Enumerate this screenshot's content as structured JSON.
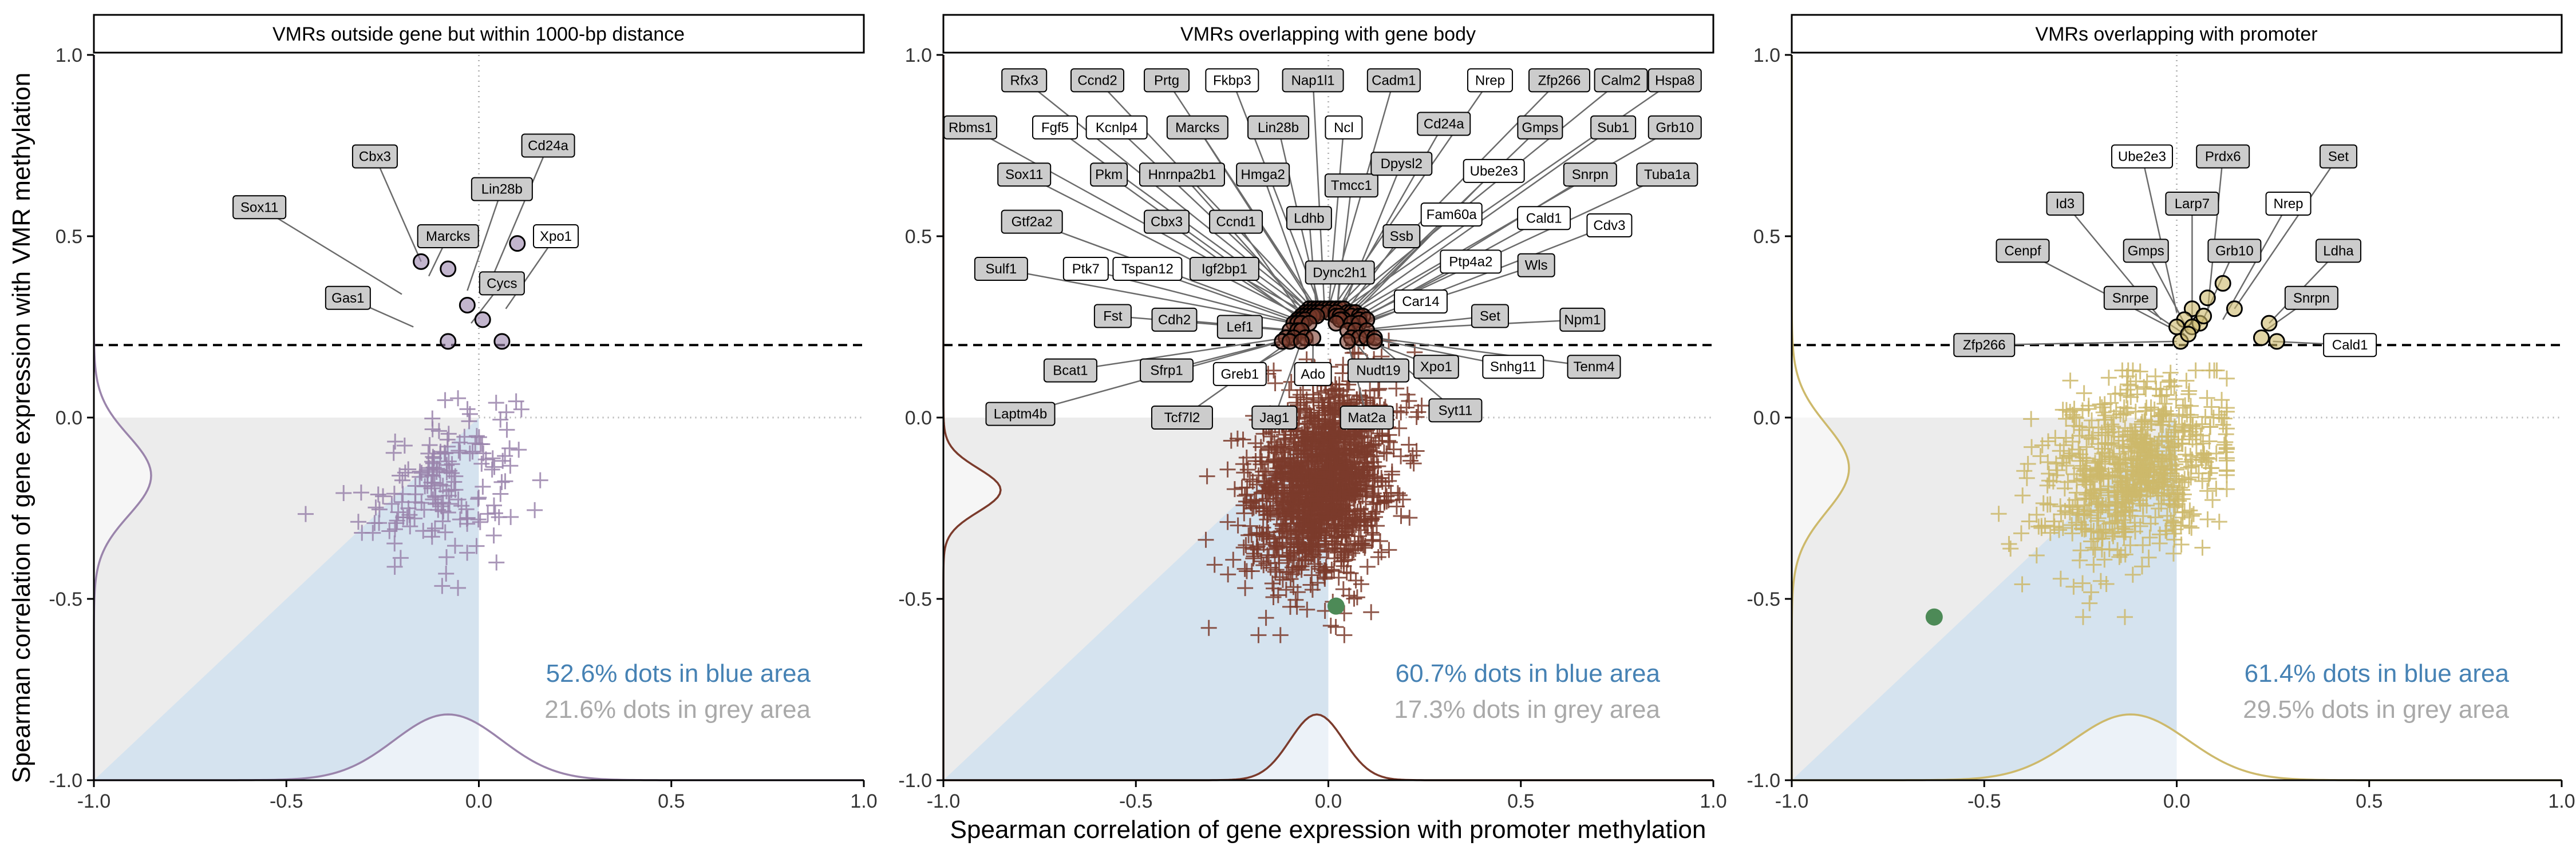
{
  "chart_data": {
    "type": "scatter",
    "xlabel": "Spearman correlation of gene expression with promoter methylation",
    "ylabel": "Spearman correlation of gene expression with VMR methylation",
    "xlim": [
      -1,
      1
    ],
    "ylim": [
      -1,
      1
    ],
    "x_ticks": [
      "-1.0",
      "-0.5",
      "0.0",
      "0.5",
      "1.0"
    ],
    "y_ticks": [
      "-1.0",
      "-0.5",
      "0.0",
      "0.5",
      "1.0"
    ],
    "threshold_y": 0.2,
    "grid": false,
    "colors": {
      "blue_area": "#d5e3ef",
      "grey_area": "#ececec",
      "highlight": "#4d8a57"
    },
    "panels": [
      {
        "title": "VMRs outside gene but within 1000-bp distance",
        "color": "#9a84ab",
        "stat_blue": "52.6% dots in blue area",
        "stat_grey": "21.6% dots in grey area",
        "cloud": {
          "center": [
            -0.1,
            -0.18
          ],
          "spread": [
            0.1,
            0.1
          ],
          "n": 170,
          "xrange": [
            -0.55,
            0.25
          ],
          "yrange": [
            -0.55,
            0.2
          ]
        },
        "highlight": null,
        "density_x": {
          "mode": -0.08,
          "width": 0.14
        },
        "density_y": {
          "mode": -0.16,
          "width": 0.11
        },
        "labeled_points": [
          {
            "label": "Cbx3",
            "x": -0.15,
            "y": 0.43,
            "lx": -0.27,
            "ly": 0.72,
            "fill": "#cccccc"
          },
          {
            "label": "Sox11",
            "x": -0.2,
            "y": 0.34,
            "lx": -0.57,
            "ly": 0.58,
            "fill": "#cccccc"
          },
          {
            "label": "Marcks",
            "x": -0.13,
            "y": 0.39,
            "lx": -0.08,
            "ly": 0.5,
            "fill": "#cccccc"
          },
          {
            "label": "Lin28b",
            "x": -0.03,
            "y": 0.35,
            "lx": 0.06,
            "ly": 0.63,
            "fill": "#cccccc"
          },
          {
            "label": "Cd24a",
            "x": 0.04,
            "y": 0.4,
            "lx": 0.18,
            "ly": 0.75,
            "fill": "#cccccc"
          },
          {
            "label": "Xpo1",
            "x": 0.07,
            "y": 0.3,
            "lx": 0.2,
            "ly": 0.5,
            "fill": "#ffffff"
          },
          {
            "label": "Gas1",
            "x": -0.17,
            "y": 0.25,
            "lx": -0.34,
            "ly": 0.33,
            "fill": "#cccccc"
          },
          {
            "label": "Cycs",
            "x": -0.02,
            "y": 0.26,
            "lx": 0.06,
            "ly": 0.37,
            "fill": "#cccccc"
          }
        ],
        "point_markers": [
          {
            "x": -0.15,
            "y": 0.43
          },
          {
            "x": -0.08,
            "y": 0.41
          },
          {
            "x": -0.03,
            "y": 0.31
          },
          {
            "x": 0.01,
            "y": 0.27
          },
          {
            "x": 0.1,
            "y": 0.48
          },
          {
            "x": -0.08,
            "y": 0.21
          },
          {
            "x": 0.06,
            "y": 0.21
          }
        ]
      },
      {
        "title": "VMRs overlapping with gene body",
        "color": "#7b3b2c",
        "stat_blue": "60.7% dots in blue area",
        "stat_grey": "17.3% dots in grey area",
        "cloud": {
          "center": [
            -0.02,
            -0.18
          ],
          "spread": [
            0.09,
            0.13
          ],
          "n": 1500,
          "xrange": [
            -0.55,
            0.3
          ],
          "yrange": [
            -0.6,
            0.45
          ]
        },
        "highlight": {
          "x": 0.02,
          "y": -0.52
        },
        "density_x": {
          "mode": -0.03,
          "width": 0.07
        },
        "density_y": {
          "mode": -0.2,
          "width": 0.06
        },
        "labeled_points": [
          {
            "label": "Rfx3",
            "x": -0.05,
            "y": 0.3,
            "lx": -0.79,
            "ly": 0.93,
            "fill": "#cccccc"
          },
          {
            "label": "Ccnd2",
            "x": -0.04,
            "y": 0.3,
            "lx": -0.6,
            "ly": 0.93,
            "fill": "#cccccc"
          },
          {
            "label": "Prtg",
            "x": -0.03,
            "y": 0.3,
            "lx": -0.42,
            "ly": 0.93,
            "fill": "#cccccc"
          },
          {
            "label": "Fkbp3",
            "x": -0.02,
            "y": 0.3,
            "lx": -0.25,
            "ly": 0.93,
            "fill": "#ffffff"
          },
          {
            "label": "Nap1l1",
            "x": -0.01,
            "y": 0.3,
            "lx": -0.04,
            "ly": 0.93,
            "fill": "#cccccc"
          },
          {
            "label": "Cadm1",
            "x": 0.0,
            "y": 0.3,
            "lx": 0.17,
            "ly": 0.93,
            "fill": "#cccccc"
          },
          {
            "label": "Nrep",
            "x": 0.01,
            "y": 0.3,
            "lx": 0.42,
            "ly": 0.93,
            "fill": "#ffffff"
          },
          {
            "label": "Zfp266",
            "x": 0.02,
            "y": 0.3,
            "lx": 0.6,
            "ly": 0.93,
            "fill": "#cccccc"
          },
          {
            "label": "Calm2",
            "x": 0.03,
            "y": 0.3,
            "lx": 0.76,
            "ly": 0.93,
            "fill": "#cccccc"
          },
          {
            "label": "Hspa8",
            "x": 0.04,
            "y": 0.3,
            "lx": 0.9,
            "ly": 0.93,
            "fill": "#cccccc"
          },
          {
            "label": "Rbms1",
            "x": -0.06,
            "y": 0.29,
            "lx": -0.93,
            "ly": 0.8,
            "fill": "#cccccc"
          },
          {
            "label": "Fgf5",
            "x": -0.05,
            "y": 0.29,
            "lx": -0.71,
            "ly": 0.8,
            "fill": "#ffffff"
          },
          {
            "label": "Kcnlp4",
            "x": -0.04,
            "y": 0.29,
            "lx": -0.55,
            "ly": 0.8,
            "fill": "#ffffff"
          },
          {
            "label": "Marcks",
            "x": -0.03,
            "y": 0.29,
            "lx": -0.34,
            "ly": 0.8,
            "fill": "#cccccc"
          },
          {
            "label": "Lin28b",
            "x": -0.02,
            "y": 0.29,
            "lx": -0.13,
            "ly": 0.8,
            "fill": "#cccccc"
          },
          {
            "label": "Ncl",
            "x": 0.0,
            "y": 0.29,
            "lx": 0.04,
            "ly": 0.8,
            "fill": "#ffffff"
          },
          {
            "label": "Cd24a",
            "x": 0.02,
            "y": 0.29,
            "lx": 0.3,
            "ly": 0.81,
            "fill": "#cccccc"
          },
          {
            "label": "Gmps",
            "x": 0.05,
            "y": 0.29,
            "lx": 0.55,
            "ly": 0.8,
            "fill": "#cccccc"
          },
          {
            "label": "Sub1",
            "x": 0.06,
            "y": 0.29,
            "lx": 0.74,
            "ly": 0.8,
            "fill": "#cccccc"
          },
          {
            "label": "Grb10",
            "x": 0.07,
            "y": 0.29,
            "lx": 0.9,
            "ly": 0.8,
            "fill": "#cccccc"
          },
          {
            "label": "Sox11",
            "x": -0.07,
            "y": 0.28,
            "lx": -0.79,
            "ly": 0.67,
            "fill": "#cccccc"
          },
          {
            "label": "Pkm",
            "x": -0.06,
            "y": 0.28,
            "lx": -0.57,
            "ly": 0.67,
            "fill": "#cccccc"
          },
          {
            "label": "Hnrnpa2b1",
            "x": -0.05,
            "y": 0.28,
            "lx": -0.38,
            "ly": 0.67,
            "fill": "#cccccc"
          },
          {
            "label": "Hmga2",
            "x": -0.04,
            "y": 0.28,
            "lx": -0.17,
            "ly": 0.67,
            "fill": "#cccccc"
          },
          {
            "label": "Tmcc1",
            "x": 0.02,
            "y": 0.28,
            "lx": 0.06,
            "ly": 0.64,
            "fill": "#cccccc"
          },
          {
            "label": "Dpysl2",
            "x": 0.03,
            "y": 0.28,
            "lx": 0.19,
            "ly": 0.7,
            "fill": "#cccccc"
          },
          {
            "label": "Ube2e3",
            "x": 0.06,
            "y": 0.28,
            "lx": 0.43,
            "ly": 0.68,
            "fill": "#ffffff"
          },
          {
            "label": "Snrpn",
            "x": 0.08,
            "y": 0.28,
            "lx": 0.68,
            "ly": 0.67,
            "fill": "#cccccc"
          },
          {
            "label": "Tuba1a",
            "x": 0.09,
            "y": 0.28,
            "lx": 0.88,
            "ly": 0.67,
            "fill": "#cccccc"
          },
          {
            "label": "Gtf2a2",
            "x": -0.08,
            "y": 0.27,
            "lx": -0.77,
            "ly": 0.54,
            "fill": "#cccccc"
          },
          {
            "label": "Cbx3",
            "x": -0.07,
            "y": 0.27,
            "lx": -0.42,
            "ly": 0.54,
            "fill": "#cccccc"
          },
          {
            "label": "Ccnd1",
            "x": -0.06,
            "y": 0.27,
            "lx": -0.24,
            "ly": 0.54,
            "fill": "#cccccc"
          },
          {
            "label": "Ldhb",
            "x": -0.03,
            "y": 0.28,
            "lx": -0.05,
            "ly": 0.55,
            "fill": "#cccccc"
          },
          {
            "label": "Fam60a",
            "x": 0.04,
            "y": 0.27,
            "lx": 0.32,
            "ly": 0.56,
            "fill": "#ffffff"
          },
          {
            "label": "Cald1",
            "x": 0.08,
            "y": 0.27,
            "lx": 0.56,
            "ly": 0.55,
            "fill": "#ffffff"
          },
          {
            "label": "Cdv3",
            "x": 0.1,
            "y": 0.27,
            "lx": 0.73,
            "ly": 0.53,
            "fill": "#ffffff"
          },
          {
            "label": "Ssb",
            "x": 0.03,
            "y": 0.27,
            "lx": 0.19,
            "ly": 0.5,
            "fill": "#cccccc"
          },
          {
            "label": "Sulf1",
            "x": -0.09,
            "y": 0.26,
            "lx": -0.85,
            "ly": 0.41,
            "fill": "#cccccc"
          },
          {
            "label": "Ptk7",
            "x": -0.08,
            "y": 0.26,
            "lx": -0.63,
            "ly": 0.41,
            "fill": "#ffffff"
          },
          {
            "label": "Tspan12",
            "x": -0.07,
            "y": 0.26,
            "lx": -0.47,
            "ly": 0.41,
            "fill": "#ffffff"
          },
          {
            "label": "Igf2bp1",
            "x": -0.05,
            "y": 0.26,
            "lx": -0.27,
            "ly": 0.41,
            "fill": "#cccccc"
          },
          {
            "label": "Dync2h1",
            "x": 0.02,
            "y": 0.26,
            "lx": 0.03,
            "ly": 0.4,
            "fill": "#cccccc"
          },
          {
            "label": "Ptp4a2",
            "x": 0.06,
            "y": 0.26,
            "lx": 0.37,
            "ly": 0.43,
            "fill": "#ffffff"
          },
          {
            "label": "Wls",
            "x": 0.08,
            "y": 0.26,
            "lx": 0.54,
            "ly": 0.42,
            "fill": "#cccccc"
          },
          {
            "label": "Car14",
            "x": 0.05,
            "y": 0.24,
            "lx": 0.24,
            "ly": 0.32,
            "fill": "#ffffff"
          },
          {
            "label": "Fst",
            "x": -0.1,
            "y": 0.24,
            "lx": -0.56,
            "ly": 0.28,
            "fill": "#cccccc"
          },
          {
            "label": "Cdh2",
            "x": -0.08,
            "y": 0.24,
            "lx": -0.4,
            "ly": 0.27,
            "fill": "#cccccc"
          },
          {
            "label": "Lef1",
            "x": -0.07,
            "y": 0.24,
            "lx": -0.23,
            "ly": 0.25,
            "fill": "#cccccc"
          },
          {
            "label": "Set",
            "x": 0.07,
            "y": 0.24,
            "lx": 0.42,
            "ly": 0.28,
            "fill": "#cccccc"
          },
          {
            "label": "Npm1",
            "x": 0.1,
            "y": 0.24,
            "lx": 0.66,
            "ly": 0.27,
            "fill": "#cccccc"
          },
          {
            "label": "Bcat1",
            "x": -0.11,
            "y": 0.22,
            "lx": -0.67,
            "ly": 0.13,
            "fill": "#cccccc"
          },
          {
            "label": "Sfrp1",
            "x": -0.09,
            "y": 0.22,
            "lx": -0.42,
            "ly": 0.13,
            "fill": "#cccccc"
          },
          {
            "label": "Greb1",
            "x": -0.06,
            "y": 0.22,
            "lx": -0.23,
            "ly": 0.12,
            "fill": "#ffffff"
          },
          {
            "label": "Ado",
            "x": -0.04,
            "y": 0.22,
            "lx": -0.04,
            "ly": 0.12,
            "fill": "#ffffff"
          },
          {
            "label": "Nudt19",
            "x": 0.06,
            "y": 0.22,
            "lx": 0.13,
            "ly": 0.13,
            "fill": "#cccccc"
          },
          {
            "label": "Xpo1",
            "x": 0.08,
            "y": 0.22,
            "lx": 0.28,
            "ly": 0.14,
            "fill": "#cccccc"
          },
          {
            "label": "Snhg11",
            "x": 0.1,
            "y": 0.22,
            "lx": 0.48,
            "ly": 0.14,
            "fill": "#ffffff"
          },
          {
            "label": "Tenm4",
            "x": 0.12,
            "y": 0.22,
            "lx": 0.69,
            "ly": 0.14,
            "fill": "#cccccc"
          },
          {
            "label": "Laptm4b",
            "x": -0.12,
            "y": 0.21,
            "lx": -0.8,
            "ly": 0.01,
            "fill": "#cccccc"
          },
          {
            "label": "Tcf7l2",
            "x": -0.1,
            "y": 0.21,
            "lx": -0.38,
            "ly": 0.0,
            "fill": "#cccccc"
          },
          {
            "label": "Jag1",
            "x": -0.07,
            "y": 0.21,
            "lx": -0.14,
            "ly": 0.0,
            "fill": "#cccccc"
          },
          {
            "label": "Mat2a",
            "x": 0.05,
            "y": 0.21,
            "lx": 0.1,
            "ly": 0.0,
            "fill": "#cccccc"
          },
          {
            "label": "Syt11",
            "x": 0.12,
            "y": 0.21,
            "lx": 0.33,
            "ly": 0.02,
            "fill": "#cccccc"
          }
        ],
        "point_markers": []
      },
      {
        "title": "VMRs overlapping with promoter",
        "color": "#cdb96b",
        "stat_blue": "61.4% dots in blue area",
        "stat_grey": "29.5% dots in grey area",
        "cloud": {
          "center": [
            -0.12,
            -0.15
          ],
          "spread": [
            0.12,
            0.12
          ],
          "n": 700,
          "xrange": [
            -0.6,
            0.13
          ],
          "yrange": [
            -0.55,
            0.13
          ]
        },
        "highlight": {
          "x": -0.63,
          "y": -0.55
        },
        "density_x": {
          "mode": -0.12,
          "width": 0.15
        },
        "density_y": {
          "mode": -0.14,
          "width": 0.12
        },
        "labeled_points": [
          {
            "label": "Ube2e3",
            "x": 0.0,
            "y": 0.29,
            "lx": -0.09,
            "ly": 0.72,
            "fill": "#ffffff"
          },
          {
            "label": "Prdx6",
            "x": 0.08,
            "y": 0.29,
            "lx": 0.12,
            "ly": 0.72,
            "fill": "#cccccc"
          },
          {
            "label": "Set",
            "x": 0.15,
            "y": 0.3,
            "lx": 0.42,
            "ly": 0.72,
            "fill": "#cccccc"
          },
          {
            "label": "Id3",
            "x": -0.04,
            "y": 0.27,
            "lx": -0.29,
            "ly": 0.59,
            "fill": "#cccccc"
          },
          {
            "label": "Larp7",
            "x": 0.04,
            "y": 0.26,
            "lx": 0.04,
            "ly": 0.59,
            "fill": "#cccccc"
          },
          {
            "label": "Nrep",
            "x": 0.12,
            "y": 0.27,
            "lx": 0.29,
            "ly": 0.59,
            "fill": "#ffffff"
          },
          {
            "label": "Cenpf",
            "x": -0.02,
            "y": 0.25,
            "lx": -0.4,
            "ly": 0.46,
            "fill": "#cccccc"
          },
          {
            "label": "Gmps",
            "x": 0.03,
            "y": 0.24,
            "lx": -0.08,
            "ly": 0.46,
            "fill": "#cccccc"
          },
          {
            "label": "Grb10",
            "x": 0.06,
            "y": 0.25,
            "lx": 0.15,
            "ly": 0.46,
            "fill": "#cccccc"
          },
          {
            "label": "Ldha",
            "x": 0.24,
            "y": 0.26,
            "lx": 0.42,
            "ly": 0.46,
            "fill": "#cccccc"
          },
          {
            "label": "Snrpe",
            "x": 0.02,
            "y": 0.23,
            "lx": -0.12,
            "ly": 0.33,
            "fill": "#cccccc"
          },
          {
            "label": "Snrpn",
            "x": 0.23,
            "y": 0.24,
            "lx": 0.35,
            "ly": 0.33,
            "fill": "#cccccc"
          },
          {
            "label": "Zfp266",
            "x": 0.0,
            "y": 0.21,
            "lx": -0.5,
            "ly": 0.2,
            "fill": "#cccccc"
          },
          {
            "label": "Cald1",
            "x": 0.25,
            "y": 0.21,
            "lx": 0.45,
            "ly": 0.2,
            "fill": "#ffffff"
          }
        ],
        "point_markers": [
          {
            "x": 0.12,
            "y": 0.37
          },
          {
            "x": 0.08,
            "y": 0.33
          },
          {
            "x": 0.15,
            "y": 0.3
          },
          {
            "x": 0.04,
            "y": 0.3
          },
          {
            "x": 0.02,
            "y": 0.27
          },
          {
            "x": 0.06,
            "y": 0.26
          },
          {
            "x": 0.0,
            "y": 0.25
          },
          {
            "x": 0.04,
            "y": 0.25
          },
          {
            "x": 0.24,
            "y": 0.26
          },
          {
            "x": 0.22,
            "y": 0.22
          },
          {
            "x": 0.26,
            "y": 0.21
          },
          {
            "x": 0.01,
            "y": 0.21
          },
          {
            "x": 0.03,
            "y": 0.23
          },
          {
            "x": 0.07,
            "y": 0.28
          }
        ]
      }
    ]
  }
}
